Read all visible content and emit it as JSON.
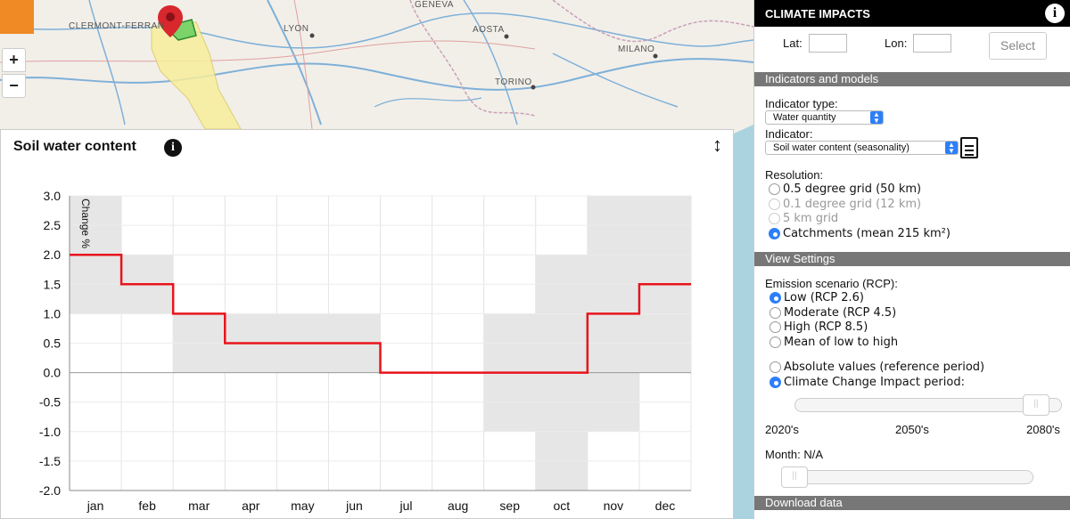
{
  "map": {
    "labels": {
      "clermont": "CLERMONT-FERRAN",
      "geneva": "GENEVA",
      "lyon": "LYON",
      "aosta": "AOSTA",
      "milano": "MILANO",
      "torino": "TORINO"
    },
    "zoom_in": "+",
    "zoom_out": "−"
  },
  "chart_panel": {
    "title": "Soil water content",
    "info_glyph": "i",
    "resize_glyph": "↕"
  },
  "chart_data": {
    "type": "step",
    "ylabel": "Change %",
    "ylim": [
      -2.0,
      3.0
    ],
    "yticks": [
      "3.0",
      "2.5",
      "2.0",
      "1.5",
      "1.0",
      "0.5",
      "0.0",
      "-0.5",
      "-1.0",
      "-1.5",
      "-2.0"
    ],
    "categories": [
      "jan",
      "feb",
      "mar",
      "apr",
      "may",
      "jun",
      "jul",
      "aug",
      "sep",
      "oct",
      "nov",
      "dec"
    ],
    "series": [
      {
        "values": [
          2.0,
          1.5,
          1.0,
          0.5,
          0.5,
          0.5,
          0.0,
          0.0,
          0.0,
          0.0,
          1.0,
          1.5
        ],
        "color": "#e8141c"
      }
    ],
    "range_bands": [
      [
        1.0,
        3.0
      ],
      [
        1.0,
        2.0
      ],
      [
        0.0,
        1.0
      ],
      [
        0.0,
        1.0
      ],
      [
        0.0,
        1.0
      ],
      [
        0.0,
        1.0
      ],
      [
        0.0,
        0.0
      ],
      [
        0.0,
        0.0
      ],
      [
        -1.0,
        1.0
      ],
      [
        -2.0,
        2.0
      ],
      [
        -1.0,
        3.0
      ],
      [
        0.0,
        3.0
      ]
    ],
    "band_color": "#e6e6e6"
  },
  "sidebar": {
    "header": "CLIMATE IMPACTS",
    "info_glyph": "i",
    "lat_label": "Lat:",
    "lon_label": "Lon:",
    "lat_value": "",
    "lon_value": "",
    "select_label": "Select",
    "section_indicators": "Indicators and models",
    "indicator_type_label": "Indicator type:",
    "indicator_type_value": "Water quantity",
    "indicator_label": "Indicator:",
    "indicator_value": "Soil water content (seasonality)",
    "resolution_label": "Resolution:",
    "resolution_options": [
      {
        "label": "0.5 degree grid (50 km)",
        "checked": false,
        "disabled": false
      },
      {
        "label": "0.1 degree grid (12 km)",
        "checked": false,
        "disabled": true
      },
      {
        "label": "5 km grid",
        "checked": false,
        "disabled": true
      },
      {
        "label": "Catchments (mean 215 km²)",
        "checked": true,
        "disabled": false
      }
    ],
    "section_view": "View Settings",
    "emission_label": "Emission scenario (RCP):",
    "emission_options": [
      {
        "label": "Low (RCP 2.6)",
        "checked": true
      },
      {
        "label": "Moderate (RCP 4.5)",
        "checked": false
      },
      {
        "label": "High (RCP 8.5)",
        "checked": false
      },
      {
        "label": "Mean of low to high",
        "checked": false
      }
    ],
    "period_options": [
      {
        "label": "Absolute values (reference period)",
        "checked": false
      },
      {
        "label": "Climate Change Impact period:",
        "checked": true
      }
    ],
    "period_slider_value": 1.0,
    "period_ticks": [
      "2020's",
      "2050's",
      "2080's"
    ],
    "month_label": "Month: N/A",
    "month_slider_value": 0.0,
    "section_download": "Download data"
  },
  "colors": {
    "accent": "#2d7ff9",
    "series": "#e8141c",
    "header_bg": "#000000",
    "section_bg": "#777777"
  }
}
